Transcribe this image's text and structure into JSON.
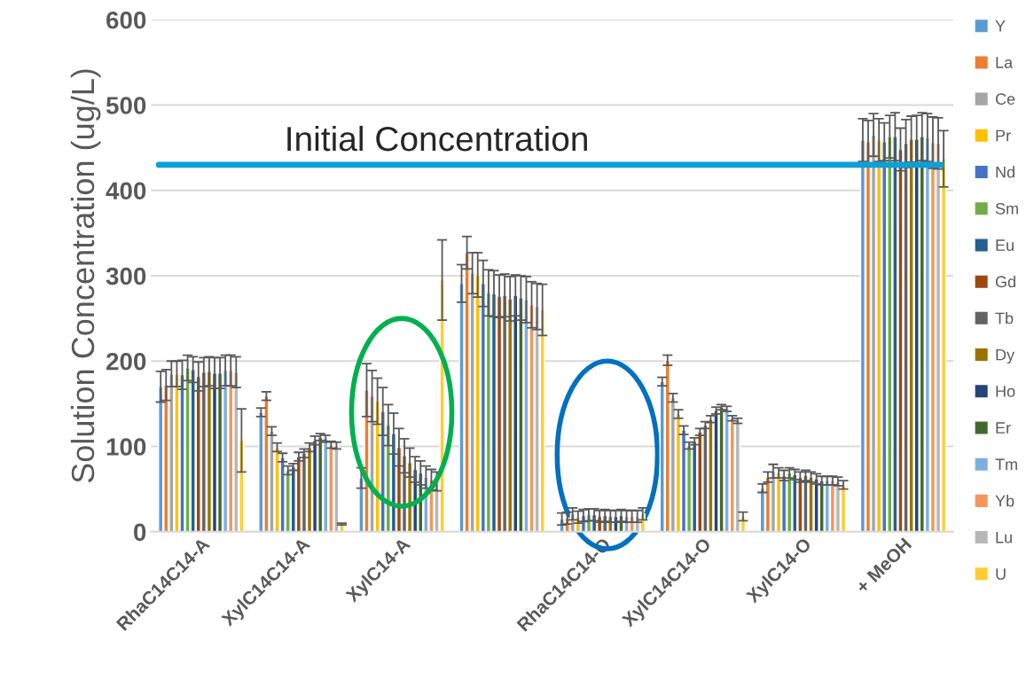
{
  "chart_data": {
    "type": "bar",
    "ylabel": "Solution Concentration (ug/L)",
    "categories": [
      "RhaC14C14-A",
      "XylC14C14-A",
      "XylC14-A",
      null,
      "RhaC14C14-O",
      "XylC14C14-O",
      "XylC14-O",
      "+ MeOH"
    ],
    "series": [
      {
        "name": "Y",
        "color": "#5b9bd5",
        "values": [
          170,
          140,
          63,
          291,
          15,
          176,
          51,
          459
        ],
        "errors": [
          18,
          5,
          12,
          22,
          7,
          5,
          5,
          25
        ]
      },
      {
        "name": "La",
        "color": "#ed7d31",
        "values": [
          172,
          159,
          166,
          327,
          16,
          201,
          64,
          457
        ],
        "errors": [
          18,
          5,
          31,
          19,
          7,
          6,
          6,
          25
        ]
      },
      {
        "name": "Ce",
        "color": "#a5a5a5",
        "values": [
          185,
          118,
          159,
          303,
          21,
          157,
          71,
          465
        ],
        "errors": [
          15,
          5,
          30,
          24,
          7,
          5,
          8,
          25
        ]
      },
      {
        "name": "Pr",
        "color": "#ffc000",
        "values": [
          185,
          99,
          153,
          301,
          17,
          138,
          69,
          459
        ],
        "errors": [
          15,
          5,
          27,
          26,
          7,
          5,
          6,
          25
        ]
      },
      {
        "name": "Nd",
        "color": "#4472c4",
        "values": [
          184,
          87,
          141,
          291,
          19,
          119,
          66,
          457
        ],
        "errors": [
          17,
          5,
          28,
          27,
          7,
          5,
          6,
          22
        ]
      },
      {
        "name": "Sm",
        "color": "#70ad47",
        "values": [
          192,
          72,
          125,
          280,
          20,
          101,
          69,
          463
        ],
        "errors": [
          15,
          5,
          24,
          27,
          7,
          4,
          6,
          25
        ]
      },
      {
        "name": "Eu",
        "color": "#255e91",
        "values": [
          190,
          76,
          115,
          279,
          20,
          106,
          67,
          463
        ],
        "errors": [
          15,
          4,
          24,
          27,
          7,
          4,
          6,
          28
        ]
      },
      {
        "name": "Gd",
        "color": "#9e480e",
        "values": [
          182,
          88,
          99,
          276,
          18,
          117,
          64,
          448
        ],
        "errors": [
          17,
          5,
          22,
          25,
          7,
          4,
          6,
          25
        ]
      },
      {
        "name": "Tb",
        "color": "#636363",
        "values": [
          187,
          92,
          89,
          277,
          19,
          125,
          66,
          455
        ],
        "errors": [
          17,
          5,
          20,
          25,
          7,
          4,
          6,
          28
        ]
      },
      {
        "name": "Dy",
        "color": "#997300",
        "values": [
          188,
          99,
          81,
          273,
          18,
          132,
          64,
          460
        ],
        "errors": [
          17,
          5,
          17,
          26,
          7,
          4,
          6,
          27
        ]
      },
      {
        "name": "Ho",
        "color": "#264478",
        "values": [
          186,
          107,
          73,
          277,
          18,
          142,
          62,
          460
        ],
        "errors": [
          18,
          5,
          15,
          24,
          7,
          4,
          6,
          28
        ]
      },
      {
        "name": "Er",
        "color": "#43682b",
        "values": [
          186,
          111,
          69,
          274,
          19,
          146,
          60,
          463
        ],
        "errors": [
          18,
          4,
          14,
          26,
          7,
          3,
          5,
          28
        ]
      },
      {
        "name": "Tm",
        "color": "#7cafdd",
        "values": [
          189,
          109,
          64,
          272,
          18,
          144,
          60,
          462
        ],
        "errors": [
          18,
          4,
          13,
          27,
          7,
          3,
          5,
          28
        ]
      },
      {
        "name": "Yb",
        "color": "#f1975a",
        "values": [
          189,
          102,
          61,
          266,
          18,
          133,
          60,
          456
        ],
        "errors": [
          18,
          4,
          12,
          27,
          7,
          3,
          5,
          30
        ]
      },
      {
        "name": "Lu",
        "color": "#b7b7b7",
        "values": [
          187,
          101,
          59,
          264,
          18,
          130,
          59,
          455
        ],
        "errors": [
          18,
          4,
          11,
          27,
          7,
          3,
          5,
          30
        ]
      },
      {
        "name": "U",
        "color": "#ffcd33",
        "values": [
          107,
          9,
          295,
          260,
          21,
          18,
          55,
          437
        ],
        "errors": [
          37,
          1,
          47,
          30,
          7,
          5,
          5,
          33
        ]
      }
    ],
    "ylim": [
      0,
      600
    ],
    "yticks": [
      0,
      100,
      200,
      300,
      400,
      500,
      600
    ],
    "grid": "y",
    "legend": "right",
    "ref_lines": [
      {
        "axis": "y",
        "value": 430,
        "label": "Initial Concentration",
        "color": "#0f9ed5"
      }
    ]
  }
}
